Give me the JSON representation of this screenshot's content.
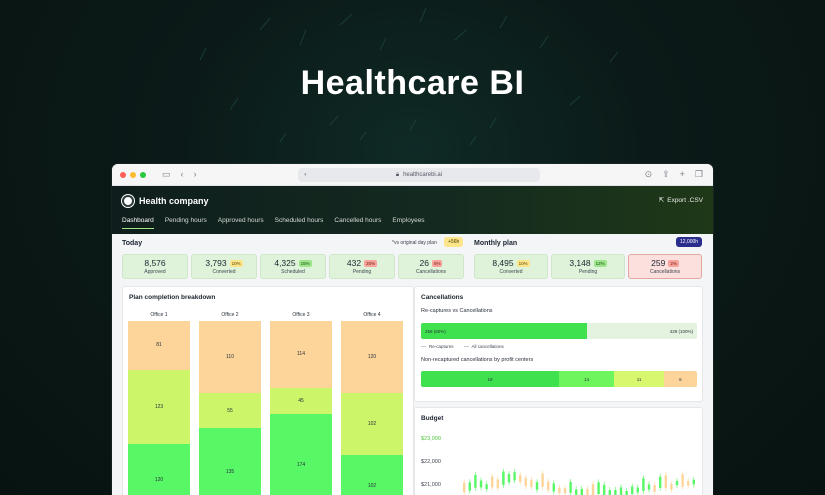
{
  "hero": {
    "title": "Healthcare BI"
  },
  "browser": {
    "url": "healthcarebi.ai"
  },
  "app": {
    "company": "Health company",
    "export_label": "Export .CSV",
    "tabs": [
      "Dashboard",
      "Pending hours",
      "Approved hours",
      "Scheduled hours",
      "Cancelled hours",
      "Employees"
    ],
    "active_tab": "Dashboard"
  },
  "today": {
    "title": "Today",
    "note": "*vs original day plan",
    "note_badge": "+56h",
    "stats": [
      {
        "value": "8,576",
        "label": "Approved",
        "pct": "",
        "pct_tone": ""
      },
      {
        "value": "3,793",
        "label": "Converted",
        "pct": "10%",
        "pct_tone": "y"
      },
      {
        "value": "4,325",
        "label": "Scheduled",
        "pct": "15%",
        "pct_tone": "g"
      },
      {
        "value": "432",
        "label": "Pending",
        "pct": "20%",
        "pct_tone": "r"
      },
      {
        "value": "26",
        "label": "Cancellations",
        "pct": "6%",
        "pct_tone": "r"
      }
    ]
  },
  "monthly": {
    "title": "Monthly plan",
    "badge": "12,000h",
    "stats": [
      {
        "value": "8,495",
        "label": "Converted",
        "pct": "10%",
        "pct_tone": "y"
      },
      {
        "value": "3,148",
        "label": "Pending",
        "pct": "12%",
        "pct_tone": "g"
      },
      {
        "value": "259",
        "label": "Cancellations",
        "pct": "2%",
        "pct_tone": "r"
      }
    ]
  },
  "plan": {
    "title": "Plan completion breakdown",
    "offices": [
      {
        "name": "Office 1",
        "segments": [
          81,
          123,
          120
        ]
      },
      {
        "name": "Office 2",
        "segments": [
          110,
          55,
          135
        ]
      },
      {
        "name": "Office 3",
        "segments": [
          114,
          45,
          174
        ]
      },
      {
        "name": "Office 4",
        "segments": [
          120,
          102,
          102
        ]
      }
    ],
    "colors": [
      "#fdd59a",
      "#cdf56a",
      "#57f765"
    ]
  },
  "cancellations": {
    "title": "Cancellations",
    "recaptures_title": "Re-captures vs Cancellations",
    "recaptures": {
      "left_label": "259 (60%)",
      "right_label": "429 (100%)",
      "fraction": 0.6
    },
    "legend": [
      "Re-captures",
      "All cancellations"
    ],
    "noncaptured_title": "Non-recaptured cancellations by profit centers",
    "centers": [
      {
        "value": 18,
        "label": "18",
        "color": "#3fe24e"
      },
      {
        "value": 14,
        "label": "14",
        "color": "#6ef55d"
      },
      {
        "value": 11,
        "label": "11",
        "color": "#d7f86e"
      },
      {
        "value": 6,
        "label": "6",
        "color": "#fdd59a"
      }
    ]
  },
  "budget": {
    "title": "Budget",
    "ticks": [
      "$23,000",
      "$22,000",
      "$21,000"
    ],
    "highlight_tick": "$23,000"
  },
  "chart_data": {
    "type": "bar",
    "categories": [
      "Office 1",
      "Office 2",
      "Office 3",
      "Office 4"
    ],
    "series": [
      {
        "values": [
          120,
          135,
          174,
          102
        ]
      },
      {
        "values": [
          123,
          55,
          45,
          102
        ]
      },
      {
        "values": [
          81,
          110,
          114,
          120
        ]
      }
    ],
    "title": "Plan completion breakdown",
    "stacked": true,
    "grid": false
  }
}
